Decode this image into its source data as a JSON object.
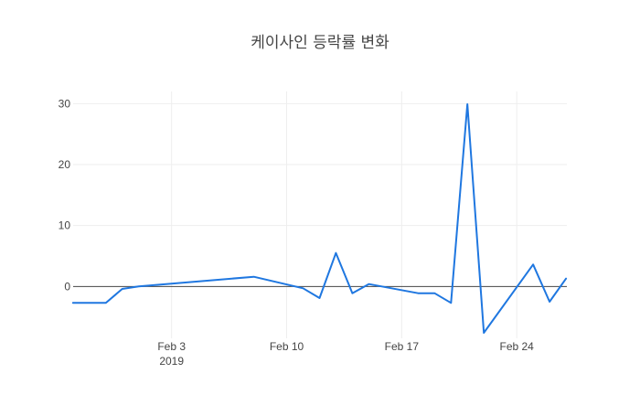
{
  "chart_data": {
    "type": "line",
    "title": "케이사인 등락률 변화",
    "xlabel": "",
    "ylabel": "",
    "x_ticks": [
      {
        "date": "2019-02-03",
        "label": "Feb 3",
        "sublabel": "2019"
      },
      {
        "date": "2019-02-10",
        "label": "Feb 10",
        "sublabel": ""
      },
      {
        "date": "2019-02-17",
        "label": "Feb 17",
        "sublabel": ""
      },
      {
        "date": "2019-02-24",
        "label": "Feb 24",
        "sublabel": ""
      }
    ],
    "y_ticks": [
      0,
      10,
      20,
      30
    ],
    "xlim": [
      "2019-01-28",
      "2019-02-26"
    ],
    "ylim": [
      -8.5,
      32
    ],
    "grid": true,
    "zero_line": true,
    "series": [
      {
        "color": "#1f77e0",
        "x": [
          "2019-01-28",
          "2019-01-29",
          "2019-01-30",
          "2019-01-31",
          "2019-02-01",
          "2019-02-08",
          "2019-02-11",
          "2019-02-12",
          "2019-02-13",
          "2019-02-14",
          "2019-02-15",
          "2019-02-18",
          "2019-02-19",
          "2019-02-20",
          "2019-02-21",
          "2019-02-22",
          "2019-02-25",
          "2019-02-26",
          "2019-02-27"
        ],
        "y": [
          -2.7,
          -2.7,
          -2.7,
          -0.4,
          0.0,
          1.6,
          -0.3,
          -1.9,
          5.5,
          -1.1,
          0.4,
          -1.1,
          -1.1,
          -2.7,
          29.9,
          -7.6,
          3.6,
          -2.5,
          1.3
        ]
      }
    ]
  }
}
